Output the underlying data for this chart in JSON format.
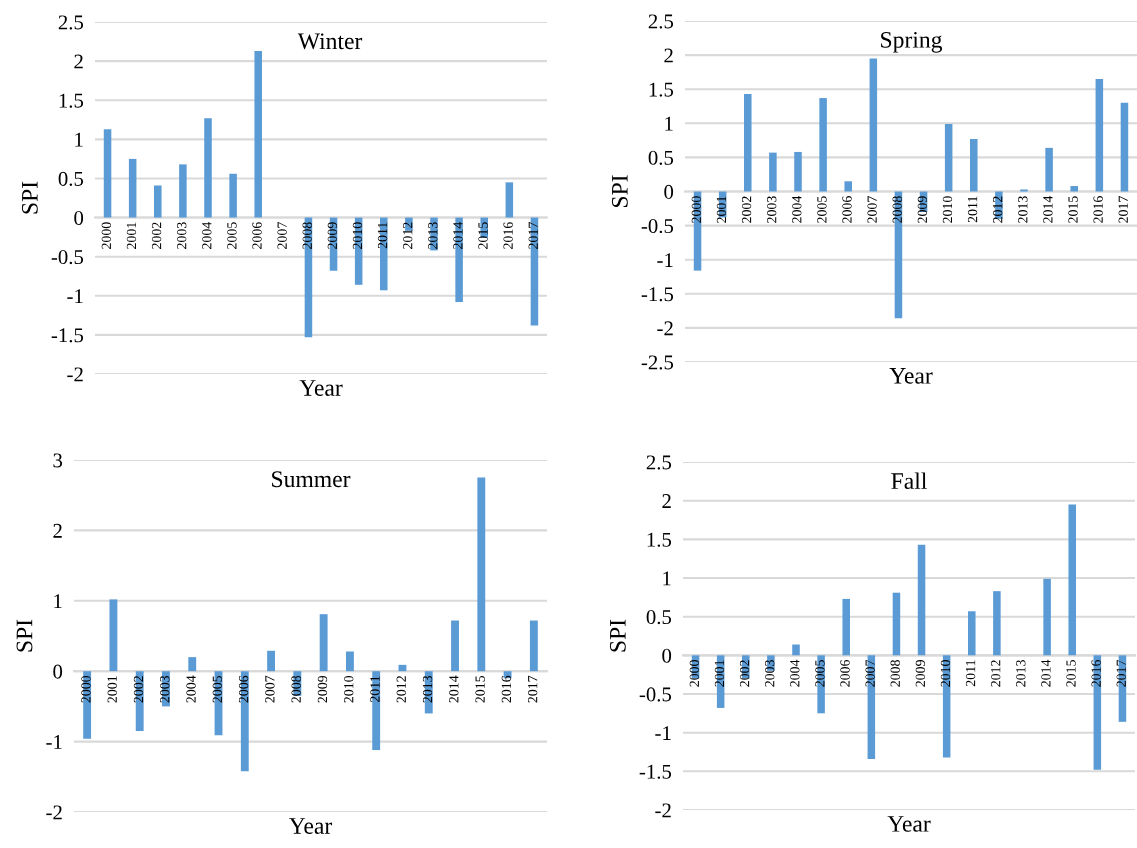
{
  "chart_data": [
    {
      "type": "bar",
      "title": "Winter",
      "xlabel": "Year",
      "ylabel": "SPI",
      "categories": [
        "2000",
        "2001",
        "2002",
        "2003",
        "2004",
        "2005",
        "2006",
        "2007",
        "2008",
        "2009",
        "2010",
        "2011",
        "2012",
        "2013",
        "2014",
        "2015",
        "2016",
        "2017"
      ],
      "color": "#5b9bd5",
      "values": [
        1.13,
        0.75,
        0.41,
        0.68,
        1.27,
        0.56,
        2.13,
        0.0,
        -1.53,
        -0.68,
        -0.86,
        -0.93,
        -0.17,
        -0.42,
        -1.08,
        -0.26,
        0.45,
        -1.38
      ],
      "ylim": [
        -2,
        2.5
      ],
      "yticks": [
        {
          "value": -2,
          "label": "-2"
        },
        {
          "value": -1.5,
          "label": "-1.5"
        },
        {
          "value": -1,
          "label": "-1"
        },
        {
          "value": -0.5,
          "label": "-0.5"
        },
        0,
        0.5,
        1,
        1.5,
        2,
        2.5
      ],
      "grid": "y"
    },
    {
      "type": "bar",
      "title": "Spring",
      "xlabel": "Year",
      "ylabel": "SPI",
      "categories": [
        "2000",
        "2001",
        "2002",
        "2003",
        "2004",
        "2005",
        "2006",
        "2007",
        "2008",
        "2009",
        "2010",
        "2011",
        "2012",
        "2013",
        "2014",
        "2015",
        "2016",
        "2017"
      ],
      "color": "#5b9bd5",
      "values": [
        -1.16,
        -0.38,
        1.43,
        0.57,
        0.58,
        1.37,
        0.15,
        1.95,
        -1.86,
        -0.3,
        0.99,
        0.77,
        -0.4,
        0.03,
        0.64,
        0.08,
        1.65,
        1.3
      ],
      "ylim": [
        -2.5,
        2.5
      ],
      "yticks": [
        {
          "value": -2.5,
          "label": "-2.5"
        },
        {
          "value": -2,
          "label": "-2"
        },
        {
          "value": -1.5,
          "label": "-1.5"
        },
        {
          "value": -1,
          "label": "-1"
        },
        {
          "value": -0.5,
          "label": "-0.5"
        },
        0,
        0.5,
        1,
        1.5,
        2,
        2.5
      ],
      "grid": "y"
    },
    {
      "type": "bar",
      "title": "Summer",
      "xlabel": "Year",
      "ylabel": "SPI",
      "categories": [
        "2000",
        "2001",
        "2002",
        "2003",
        "2004",
        "2005",
        "2006",
        "2007",
        "2008",
        "2009",
        "2010",
        "2011",
        "2012",
        "2013",
        "2014",
        "2015",
        "2016",
        "2017"
      ],
      "color": "#5b9bd5",
      "values": [
        -0.96,
        1.02,
        -0.85,
        -0.5,
        0.2,
        -0.91,
        -1.42,
        0.29,
        -0.35,
        0.81,
        0.28,
        -1.12,
        0.09,
        -0.6,
        0.72,
        2.75,
        -0.1,
        0.72
      ],
      "ylim": [
        -2,
        3
      ],
      "yticks": [
        {
          "value": -2,
          "label": "-2"
        },
        {
          "value": -1,
          "label": "-1"
        },
        0,
        1,
        2,
        3
      ],
      "grid": "y"
    },
    {
      "type": "bar",
      "title": "Fall",
      "xlabel": "Year",
      "ylabel": "SPI",
      "categories": [
        "2000",
        "2001",
        "2002",
        "2003",
        "2004",
        "2005",
        "2006",
        "2007",
        "2008",
        "2009",
        "2010",
        "2011",
        "2012",
        "2013",
        "2014",
        "2015",
        "2016",
        "2017"
      ],
      "color": "#5b9bd5",
      "values": [
        -0.3,
        -0.68,
        -0.3,
        -0.2,
        0.14,
        -0.75,
        0.73,
        -1.34,
        0.81,
        1.43,
        -1.32,
        0.57,
        0.83,
        null,
        0.99,
        1.95,
        -1.48,
        -0.86
      ],
      "ylim": [
        -2,
        2.5
      ],
      "yticks": [
        {
          "value": -2,
          "label": "-2"
        },
        {
          "value": -1.5,
          "label": "-1.5"
        },
        {
          "value": -1,
          "label": "-1"
        },
        {
          "value": -0.5,
          "label": "-0.5"
        },
        0,
        0.5,
        1,
        1.5,
        2,
        2.5
      ],
      "grid": "y"
    }
  ]
}
